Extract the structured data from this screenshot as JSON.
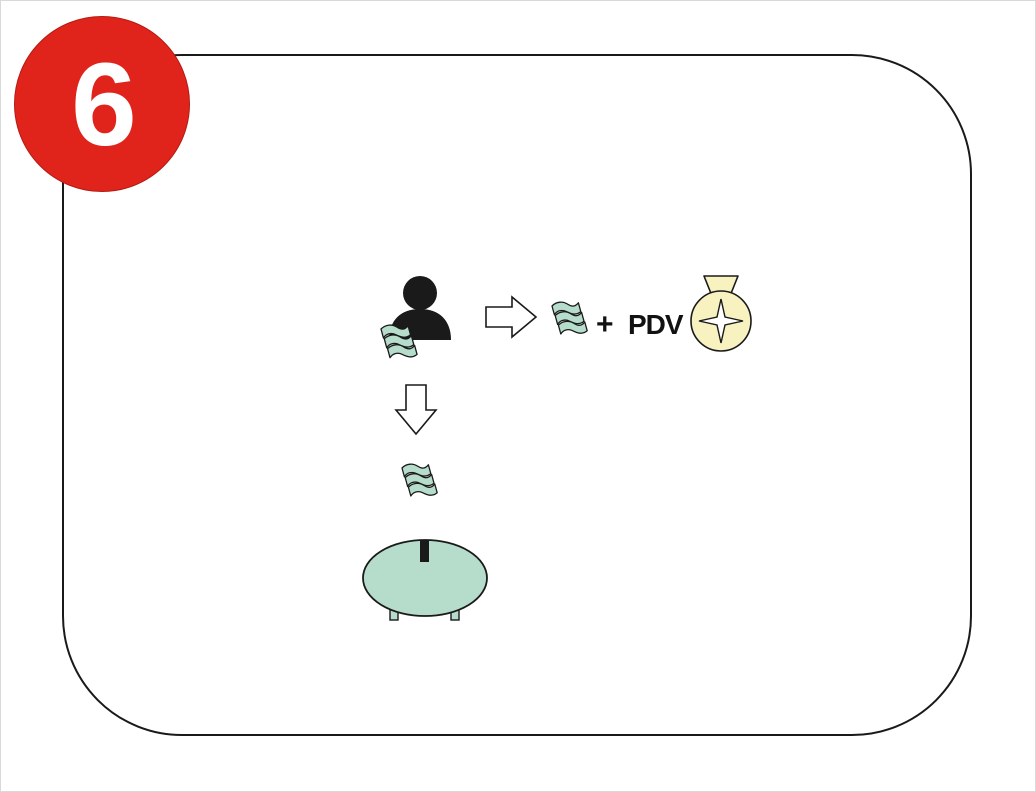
{
  "step": {
    "number": "6"
  },
  "flow": {
    "plus": "+",
    "tax_label": "PDV"
  },
  "icons": {
    "person": "person-icon",
    "money": "banknote-icon",
    "arrow_right": "arrow-right-icon",
    "arrow_down": "arrow-down-icon",
    "medal": "medal-icon",
    "piggy_bank": "piggy-bank-icon"
  },
  "colors": {
    "badge_red": "#e0241b",
    "money_green": "#b6dccb",
    "medal_yellow": "#f7f2bf",
    "ink": "#1a1a1a"
  }
}
